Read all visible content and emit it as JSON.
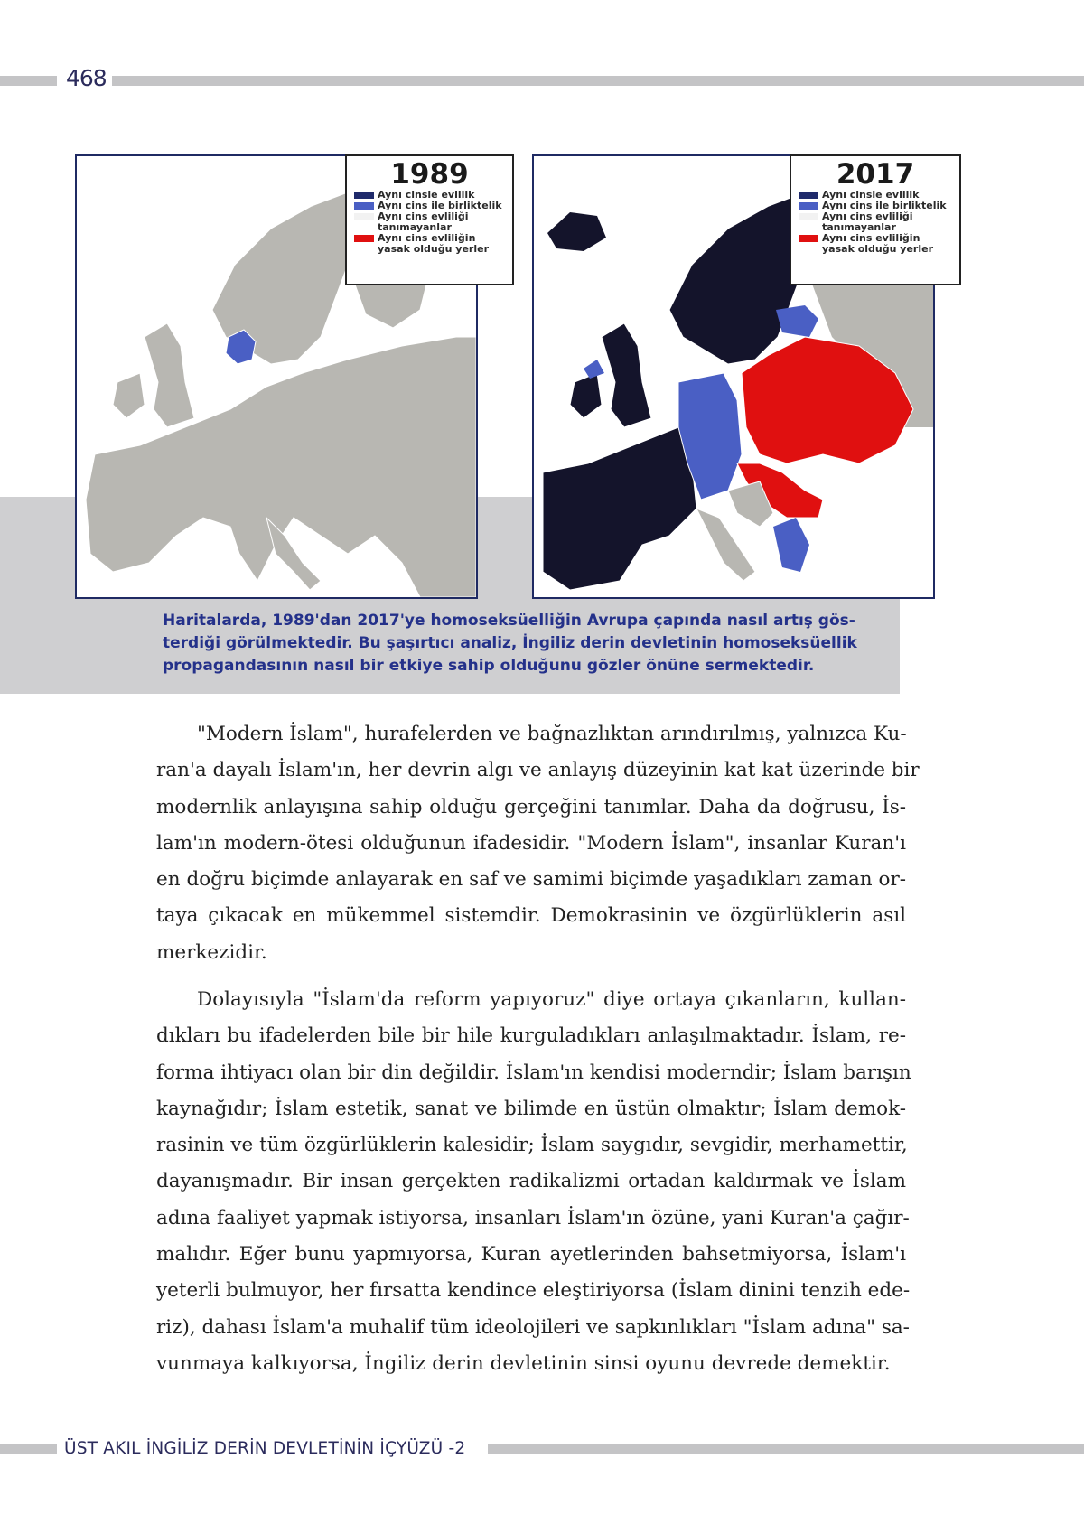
{
  "header": {
    "page_number": "468"
  },
  "maps": [
    {
      "year": "1989",
      "legend": [
        {
          "label": "Aynı cinsle evlilik",
          "color": "#1f2a6b"
        },
        {
          "label": "Aynı cins ile birliktelik",
          "color": "#4a5fc4"
        },
        {
          "label": "Aynı cins evliliği\ntanımayanlar",
          "color": "#f2f2f2"
        },
        {
          "label": "Aynı cins evliliğin\nyasak olduğu yerler",
          "color": "#e01010"
        }
      ]
    },
    {
      "year": "2017",
      "legend": [
        {
          "label": "Aynı cinsle evlilik",
          "color": "#1f2a6b"
        },
        {
          "label": "Aynı cins ile birliktelik",
          "color": "#4a5fc4"
        },
        {
          "label": "Aynı cins evliliği\ntanımayanlar",
          "color": "#f2f2f2"
        },
        {
          "label": "Aynı cins evliliğin\nyasak olduğu yerler",
          "color": "#e01010"
        }
      ]
    }
  ],
  "caption": {
    "lines": [
      "Haritalarda, 1989'dan 2017'ye homoseksüelliğin Avrupa çapında nasıl artış gös-",
      "terdiği görülmektedir. Bu şaşırtıcı analiz, İngiliz derin devletinin homoseksüellik",
      "propagandasının nasıl bir etkiye sahip olduğunu gözler önüne sermektedir."
    ]
  },
  "paragraphs": [
    {
      "lines": [
        "\"Modern İslam\", hurafelerden ve bağnazlıktan arındırılmış, yalnızca Ku-",
        "ran'a dayalı İslam'ın, her devrin algı ve anlayış düzeyinin kat kat üzerinde bir",
        "modernlik anlayışına sahip olduğu gerçeğini tanımlar. Daha da doğrusu, İs-",
        "lam'ın modern-ötesi olduğunun ifadesidir. \"Modern İslam\", insanlar Kuran'ı",
        "en doğru biçimde anlayarak en saf ve samimi biçimde yaşadıkları zaman or-",
        "taya çıkacak en mükemmel sistemdir. Demokrasinin ve özgürlüklerin asıl",
        "merkezidir."
      ]
    },
    {
      "lines": [
        "Dolayısıyla \"İslam'da reform yapıyoruz\" diye ortaya çıkanların, kullan-",
        "dıkları bu ifadelerden bile bir hile kurguladıkları anlaşılmaktadır. İslam, re-",
        "forma ihtiyacı olan bir din değildir. İslam'ın kendisi moderndir; İslam barışın",
        "kaynağıdır; İslam estetik, sanat ve bilimde en üstün olmaktır; İslam demok-",
        "rasinin ve tüm özgürlüklerin kalesidir; İslam saygıdır, sevgidir, merhamettir,",
        "dayanışmadır. Bir insan gerçekten radikalizmi ortadan kaldırmak ve İslam",
        "adına faaliyet yapmak istiyorsa, insanları İslam'ın özüne, yani Kuran'a çağır-",
        "malıdır. Eğer bunu yapmıyorsa, Kuran ayetlerinden bahsetmiyorsa, İslam'ı",
        "yeterli bulmuyor, her fırsatta kendince eleştiriyorsa (İslam dinini tenzih ede-",
        "riz), dahası İslam'a muhalif tüm ideolojileri ve sapkınlıkları \"İslam adına\" sa-",
        "vunmaya kalkıyorsa, İngiliz derin devletinin sinsi oyunu devrede demektir."
      ]
    }
  ],
  "footer": {
    "running_title": "ÜST AKIL İNGİLİZ DERİN DEVLETİNİN İÇYÜZÜ -2"
  }
}
